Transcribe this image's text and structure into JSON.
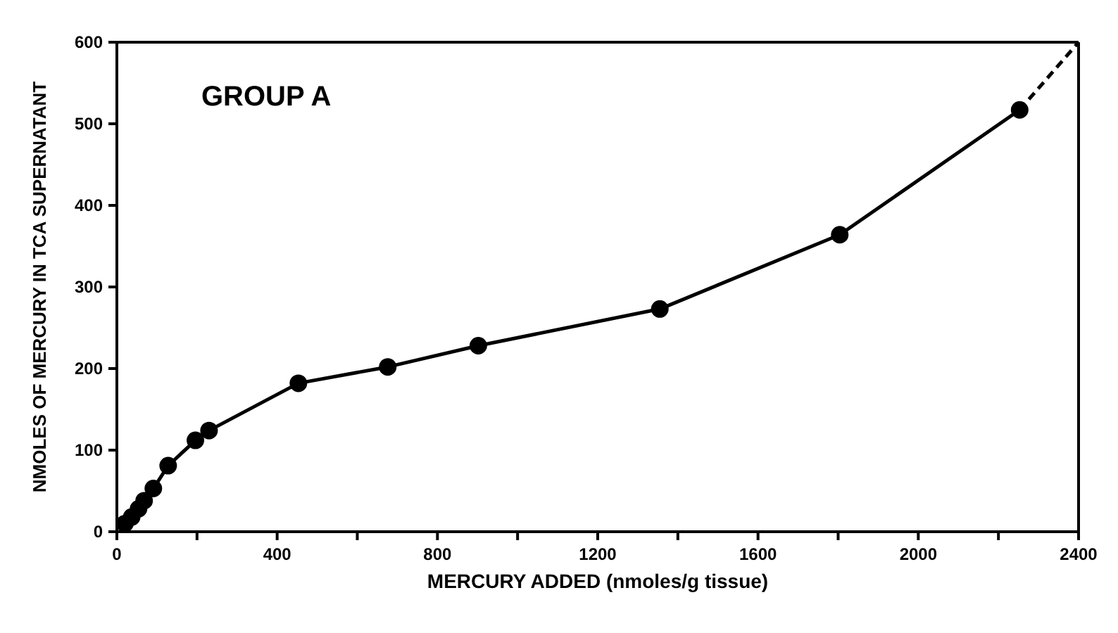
{
  "chart_data": {
    "type": "line",
    "xlabel": "MERCURY ADDED (nmoles/g tissue)",
    "ylabel": "NMOLES OF MERCURY IN TCA SUPERNATANT",
    "annotations": [
      "GROUP A"
    ],
    "xlim": [
      0,
      2400
    ],
    "ylim": [
      0,
      600
    ],
    "xticks": [
      0,
      {
        "value": 200,
        "label": null
      },
      400,
      {
        "value": 600,
        "label": null
      },
      800,
      {
        "value": 1000,
        "label": null
      },
      1200,
      {
        "value": 1400,
        "label": null
      },
      1600,
      {
        "value": 1800,
        "label": null
      },
      2000,
      {
        "value": 2200,
        "label": null
      },
      2400
    ],
    "yticks": [
      0,
      100,
      200,
      300,
      400,
      500,
      600
    ],
    "grid": false,
    "legend": false,
    "series": [
      {
        "color": "#000000",
        "marker": "circle",
        "line_style": "solid",
        "x": [
          20,
          37,
          54,
          68,
          91,
          128,
          196,
          230,
          453,
          676,
          902,
          1355,
          1804,
          2253
        ],
        "values": [
          10,
          18,
          28,
          38,
          53,
          81,
          112,
          124,
          182,
          202,
          228,
          273,
          364,
          517
        ]
      },
      {
        "color": "#000000",
        "marker": "none",
        "line_style": "dashed",
        "x": [
          2253,
          2400
        ],
        "values": [
          517,
          600
        ]
      }
    ]
  }
}
